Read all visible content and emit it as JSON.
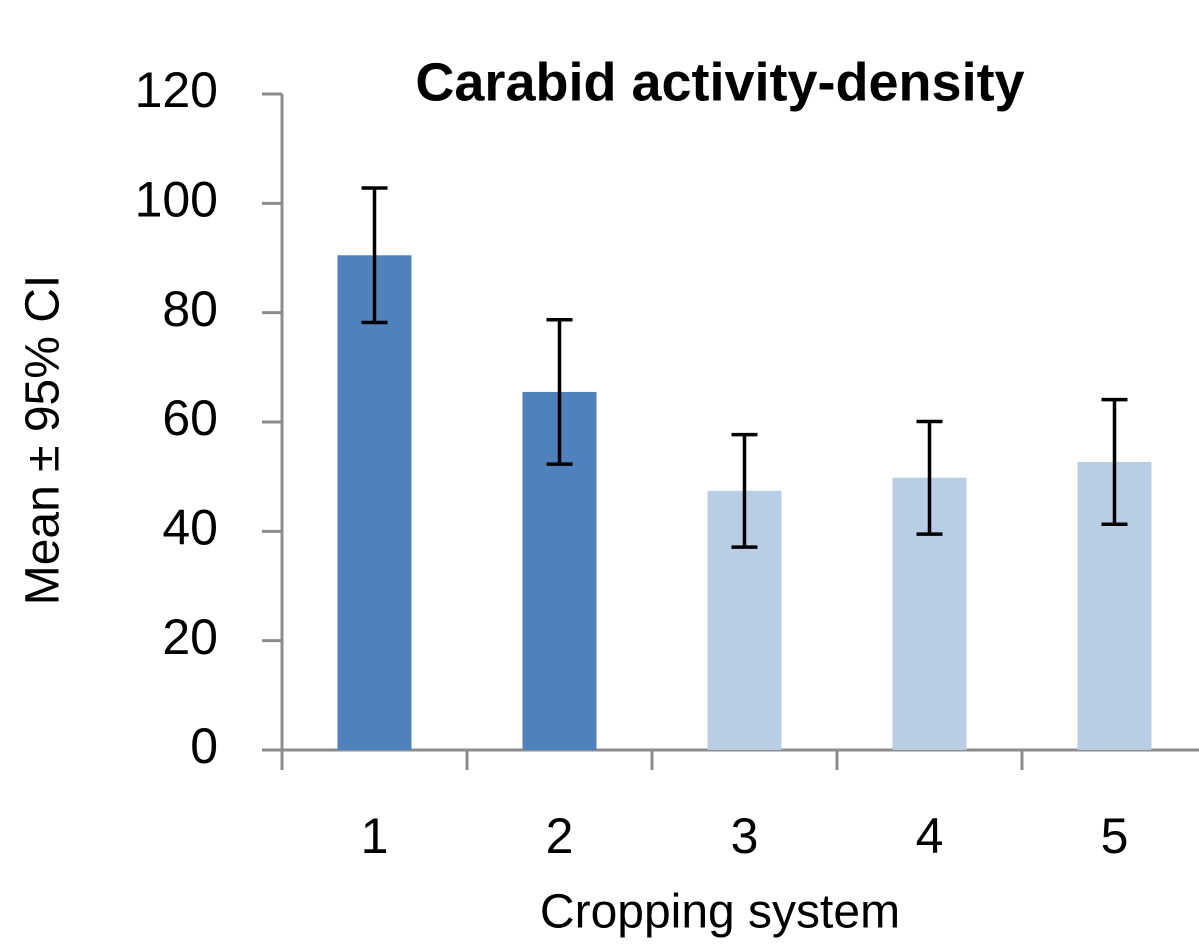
{
  "chart_data": {
    "type": "bar",
    "title": "Carabid activity-density",
    "xlabel": "Cropping system",
    "ylabel": "Mean ± 95% CI",
    "categories": [
      "1",
      "2",
      "3",
      "4",
      "5"
    ],
    "values": [
      90.5,
      65.5,
      47.4,
      49.8,
      52.7
    ],
    "errors": [
      12.3,
      13.2,
      10.3,
      10.3,
      11.4
    ],
    "colors": [
      "#4f81bd",
      "#4f81bd",
      "#b9cde5",
      "#b9cde5",
      "#b9cde5"
    ],
    "ylim": [
      0,
      120
    ],
    "yticks": [
      0,
      20,
      40,
      60,
      80,
      100,
      120
    ],
    "grid": false
  }
}
